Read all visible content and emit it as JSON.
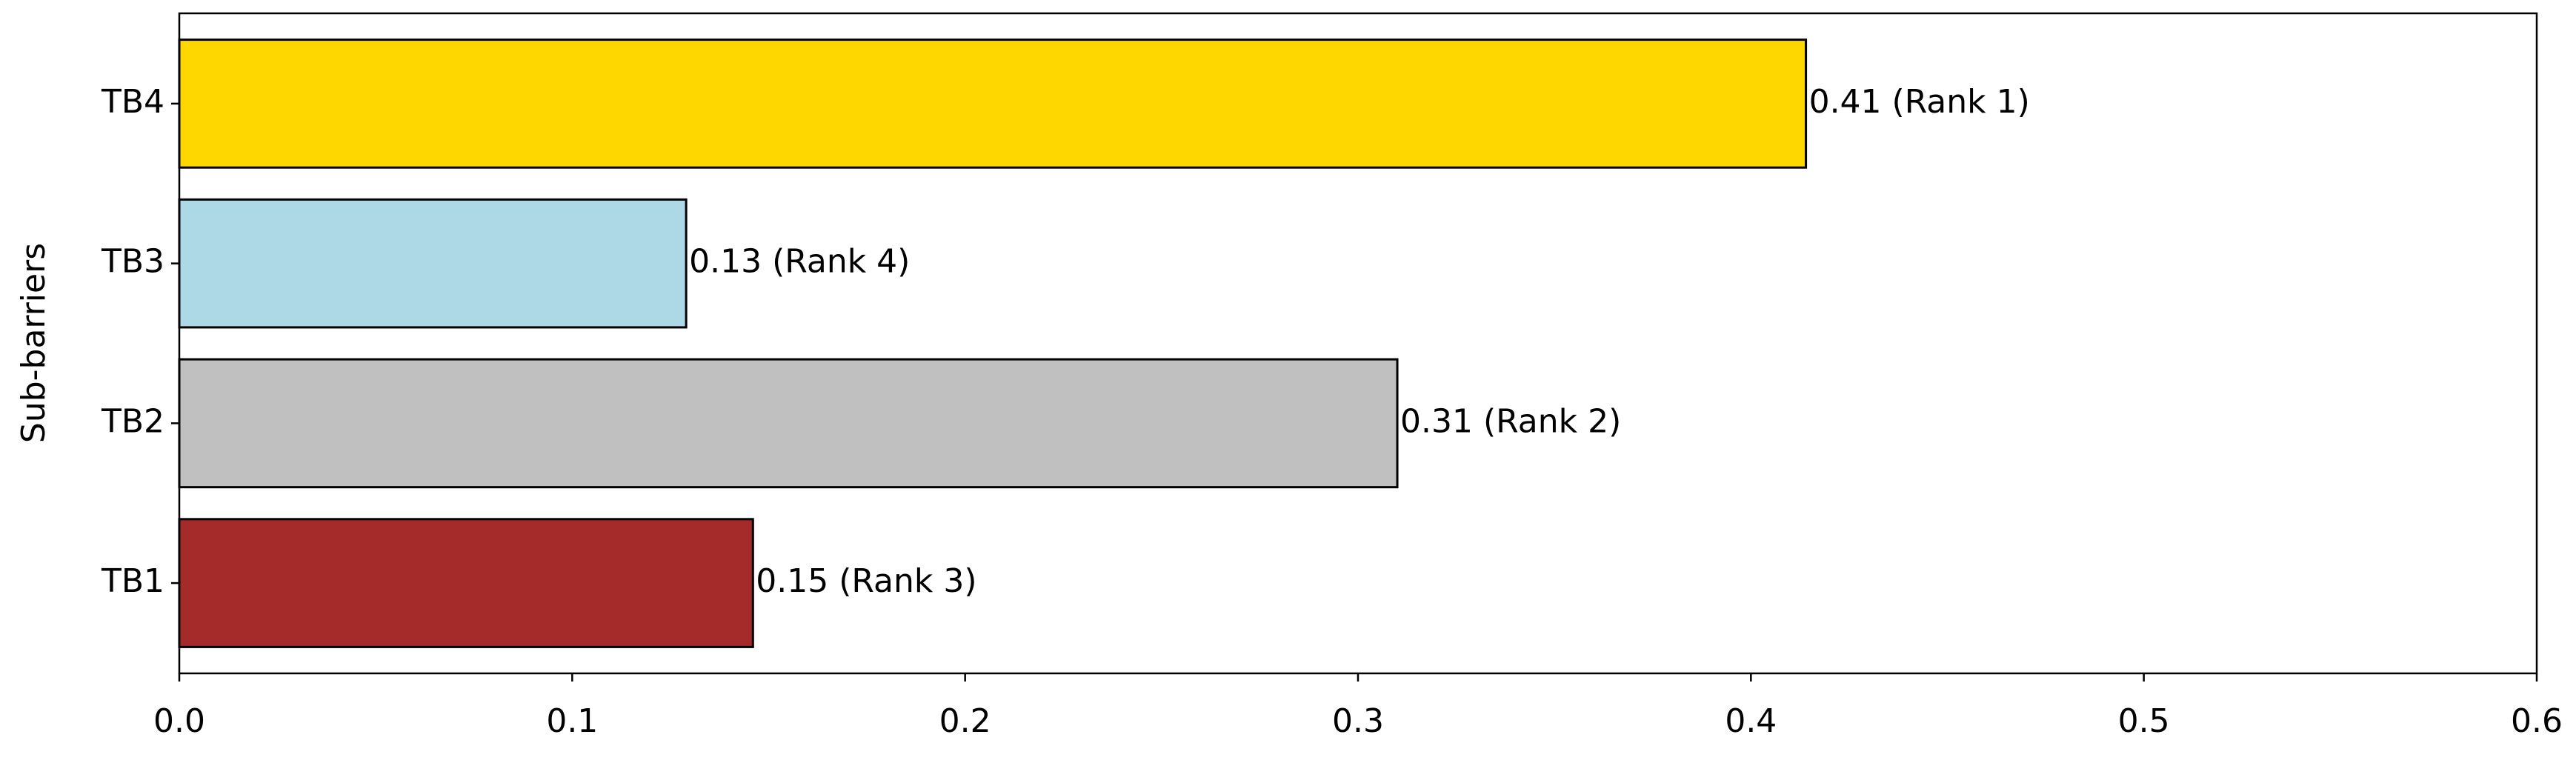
{
  "chart_data": {
    "type": "barh",
    "ylabel": "Sub-barriers",
    "categories": [
      "TB1",
      "TB2",
      "TB3",
      "TB4"
    ],
    "values": [
      0.146,
      0.31,
      0.129,
      0.414
    ],
    "value_labels": [
      "0.15 (Rank 3)",
      "0.31 (Rank 2)",
      "0.13 (Rank 4)",
      "0.41 (Rank 1)"
    ],
    "colors": [
      "#a52a2a",
      "#c0c0c0",
      "#add8e6",
      "#ffd700"
    ],
    "xlim": [
      0,
      0.6
    ],
    "xticks": [
      {
        "value": 0,
        "label": "0.0"
      },
      0.1,
      0.2,
      0.3,
      0.4,
      0.5,
      0.6
    ],
    "grid": false
  }
}
